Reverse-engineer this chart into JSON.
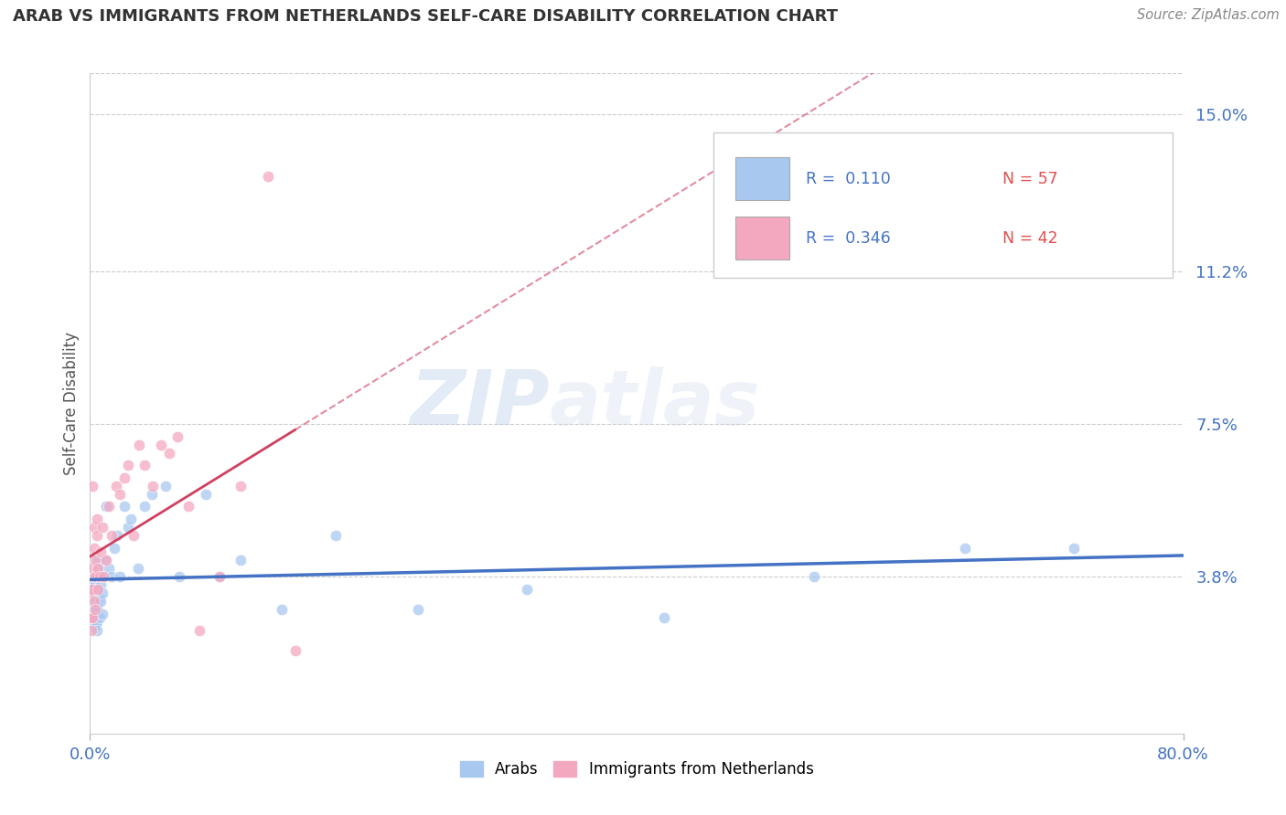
{
  "title": "ARAB VS IMMIGRANTS FROM NETHERLANDS SELF-CARE DISABILITY CORRELATION CHART",
  "source": "Source: ZipAtlas.com",
  "ylabel": "Self-Care Disability",
  "xlim": [
    0.0,
    0.8
  ],
  "ylim": [
    0.0,
    0.16
  ],
  "yticks": [
    0.038,
    0.075,
    0.112,
    0.15
  ],
  "ytick_labels": [
    "3.8%",
    "7.5%",
    "11.2%",
    "15.0%"
  ],
  "xticks": [
    0.0,
    0.8
  ],
  "xtick_labels": [
    "0.0%",
    "80.0%"
  ],
  "legend_r1": "R =  0.110",
  "legend_n1": "N = 57",
  "legend_r2": "R =  0.346",
  "legend_n2": "N = 42",
  "color_arab": "#a8c8f0",
  "color_immig": "#f4a8c0",
  "color_trendline_arab": "#4472c4",
  "color_trendline_immig": "#d04060",
  "color_axis_labels": "#4472c4",
  "color_r_values": "#4472c4",
  "color_n_values": "#e05050",
  "watermark_zip": "ZIP",
  "watermark_atlas": "atlas",
  "arab_x": [
    0.001,
    0.001,
    0.001,
    0.002,
    0.002,
    0.002,
    0.002,
    0.003,
    0.003,
    0.003,
    0.003,
    0.003,
    0.004,
    0.004,
    0.004,
    0.004,
    0.005,
    0.005,
    0.005,
    0.005,
    0.005,
    0.006,
    0.006,
    0.006,
    0.007,
    0.007,
    0.008,
    0.008,
    0.009,
    0.009,
    0.01,
    0.011,
    0.012,
    0.014,
    0.016,
    0.018,
    0.02,
    0.022,
    0.025,
    0.028,
    0.03,
    0.035,
    0.04,
    0.045,
    0.055,
    0.065,
    0.085,
    0.095,
    0.11,
    0.14,
    0.18,
    0.24,
    0.32,
    0.42,
    0.53,
    0.64,
    0.72
  ],
  "arab_y": [
    0.034,
    0.03,
    0.028,
    0.032,
    0.036,
    0.033,
    0.029,
    0.031,
    0.027,
    0.038,
    0.035,
    0.03,
    0.033,
    0.029,
    0.026,
    0.036,
    0.031,
    0.027,
    0.038,
    0.03,
    0.025,
    0.042,
    0.035,
    0.04,
    0.033,
    0.028,
    0.036,
    0.032,
    0.034,
    0.029,
    0.038,
    0.042,
    0.055,
    0.04,
    0.038,
    0.045,
    0.048,
    0.038,
    0.055,
    0.05,
    0.052,
    0.04,
    0.055,
    0.058,
    0.06,
    0.038,
    0.058,
    0.038,
    0.042,
    0.03,
    0.048,
    0.03,
    0.035,
    0.028,
    0.038,
    0.045,
    0.045
  ],
  "immig_x": [
    0.001,
    0.001,
    0.001,
    0.002,
    0.002,
    0.002,
    0.002,
    0.003,
    0.003,
    0.003,
    0.003,
    0.004,
    0.004,
    0.004,
    0.005,
    0.005,
    0.006,
    0.006,
    0.007,
    0.008,
    0.009,
    0.01,
    0.012,
    0.014,
    0.016,
    0.019,
    0.022,
    0.025,
    0.028,
    0.032,
    0.036,
    0.04,
    0.046,
    0.052,
    0.058,
    0.064,
    0.072,
    0.08,
    0.095,
    0.11,
    0.13,
    0.15
  ],
  "immig_y": [
    0.034,
    0.028,
    0.025,
    0.06,
    0.035,
    0.04,
    0.028,
    0.045,
    0.038,
    0.05,
    0.032,
    0.042,
    0.038,
    0.03,
    0.052,
    0.048,
    0.04,
    0.035,
    0.038,
    0.044,
    0.05,
    0.038,
    0.042,
    0.055,
    0.048,
    0.06,
    0.058,
    0.062,
    0.065,
    0.048,
    0.07,
    0.065,
    0.06,
    0.07,
    0.068,
    0.072,
    0.055,
    0.025,
    0.038,
    0.06,
    0.135,
    0.02
  ]
}
